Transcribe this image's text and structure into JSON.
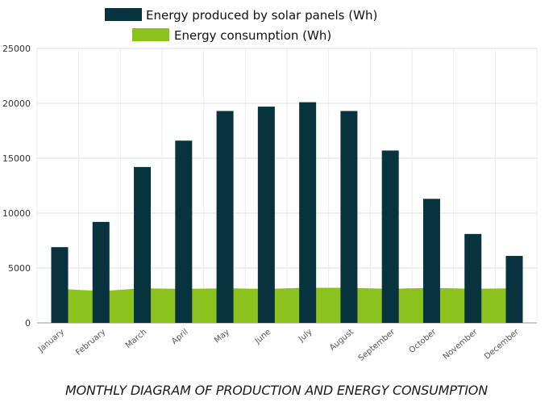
{
  "chart_data": {
    "type": "bar",
    "categories": [
      "January",
      "February",
      "March",
      "April",
      "May",
      "June",
      "July",
      "August",
      "September",
      "October",
      "November",
      "December"
    ],
    "series": [
      {
        "name": "Energy produced by solar panels (Wh)",
        "type": "bar",
        "color": "#07333f",
        "values": [
          6900,
          9200,
          14200,
          16600,
          19300,
          19700,
          20100,
          19300,
          15700,
          11300,
          8100,
          6100
        ]
      },
      {
        "name": "Energy consumption (Wh)",
        "type": "area",
        "color": "#8cc21e",
        "values": [
          3100,
          2900,
          3150,
          3100,
          3150,
          3100,
          3200,
          3200,
          3100,
          3200,
          3100,
          3150
        ]
      }
    ],
    "yticks": [
      0,
      5000,
      10000,
      15000,
      20000,
      25000
    ],
    "ylim": [
      0,
      25000
    ],
    "grid": true,
    "legend": "top-center",
    "caption": "MONTHLY DIAGRAM OF PRODUCTION AND ENERGY CONSUMPTION"
  }
}
